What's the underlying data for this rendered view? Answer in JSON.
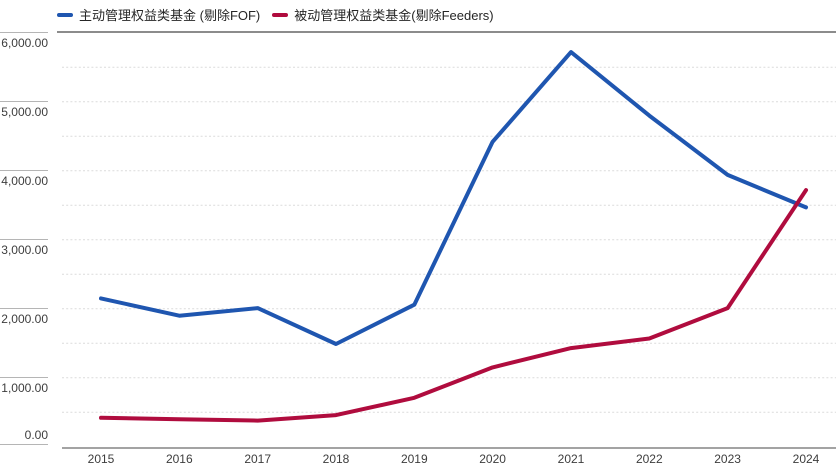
{
  "legend": [
    {
      "label": "主动管理权益类基金 (剔除FOF)",
      "color": "#1f56b0"
    },
    {
      "label": "被动管理权益类基金(剔除Feeders)",
      "color": "#b00c3e"
    }
  ],
  "chart_data": {
    "type": "line",
    "x": [
      "2015",
      "2016",
      "2017",
      "2018",
      "2019",
      "2020",
      "2021",
      "2022",
      "2023",
      "2024"
    ],
    "series": [
      {
        "name": "主动管理权益类基金 (剔除FOF)",
        "color": "#1f56b0",
        "values": [
          2150,
          1900,
          2010,
          1490,
          2060,
          4420,
          5720,
          4800,
          3940,
          3470
        ]
      },
      {
        "name": "被动管理权益类基金(剔除Feeders)",
        "color": "#b00c3e",
        "values": [
          420,
          400,
          380,
          460,
          710,
          1150,
          1430,
          1570,
          2010,
          3720
        ]
      }
    ],
    "ylim": [
      0,
      6000
    ],
    "ytick_values": [
      0,
      1000,
      2000,
      3000,
      4000,
      5000,
      6000
    ],
    "ytick_labels": [
      "0.00",
      "1,000.00",
      "2,000.00",
      "3,000.00",
      "4,000.00",
      "5,000.00",
      "6,000.00"
    ],
    "grid_step": 500,
    "grid_style": "dotted horizontal every 500, solid margin rules every 1000",
    "legend_position": "top-left",
    "title": "",
    "xlabel": "",
    "ylabel": ""
  },
  "colors": {
    "gridline": "#dbdbdb",
    "top_border": "#8c8c8c",
    "bottom_axis": "#a3a3a3",
    "tick_rule": "#b5b5b5",
    "axis_text": "#3d3d3d",
    "legend_text": "#262626",
    "background": "#ffffff"
  }
}
